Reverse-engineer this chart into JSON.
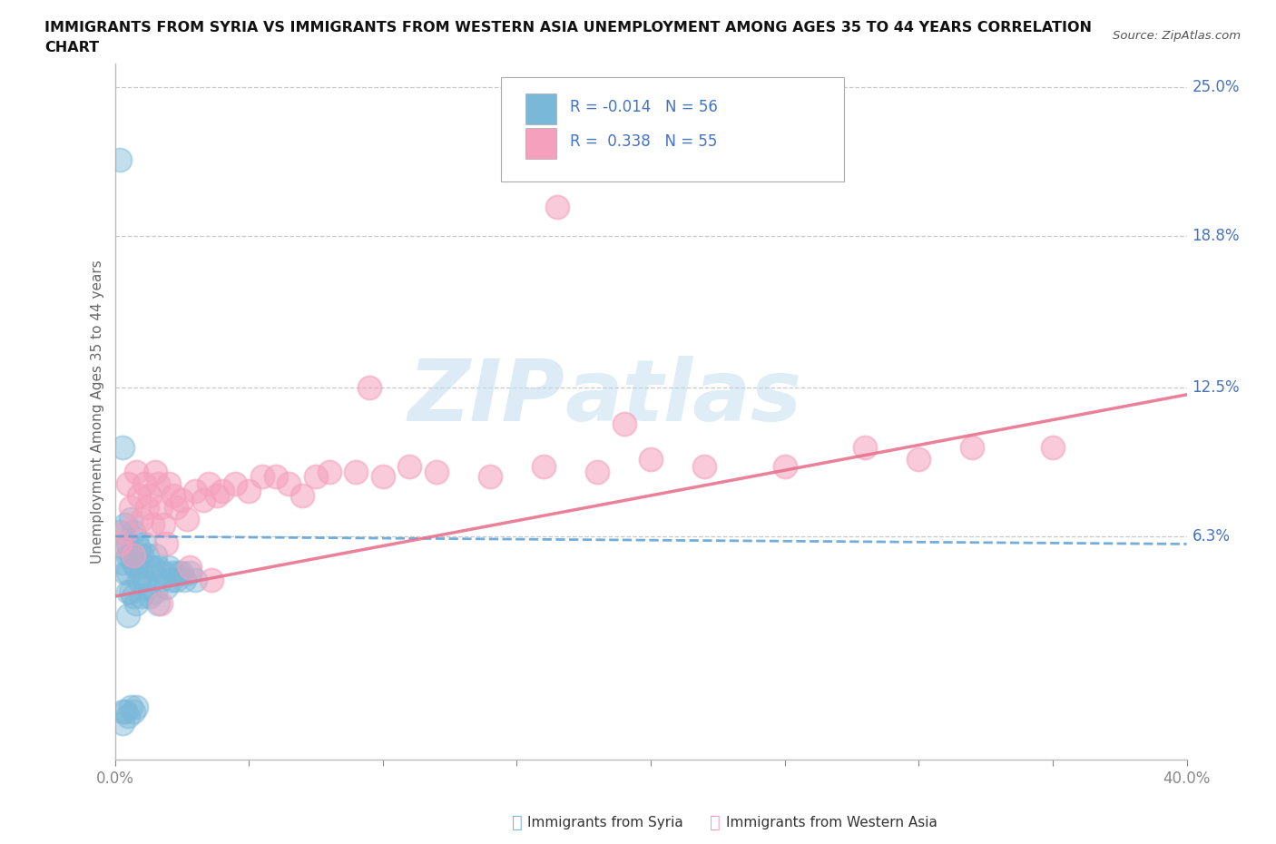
{
  "title_line1": "IMMIGRANTS FROM SYRIA VS IMMIGRANTS FROM WESTERN ASIA UNEMPLOYMENT AMONG AGES 35 TO 44 YEARS CORRELATION",
  "title_line2": "CHART",
  "source": "Source: ZipAtlas.com",
  "ylabel": "Unemployment Among Ages 35 to 44 years",
  "xlim": [
    0.0,
    0.4
  ],
  "ylim": [
    -0.03,
    0.26
  ],
  "ytick_positions": [
    0.063,
    0.125,
    0.188,
    0.25
  ],
  "ytick_labels": [
    "6.3%",
    "12.5%",
    "18.8%",
    "25.0%"
  ],
  "syria_color": "#7ab8d9",
  "western_color": "#f5a0bc",
  "syria_line_color": "#5b9fd4",
  "western_line_color": "#e8728f",
  "legend_R_syria": "-0.014",
  "legend_N_syria": "56",
  "legend_R_western": "0.338",
  "legend_N_western": "55",
  "legend_label_syria": "Immigrants from Syria",
  "legend_label_western": "Immigrants from Western Asia",
  "syria_x": [
    0.002,
    0.002,
    0.003,
    0.003,
    0.004,
    0.004,
    0.004,
    0.005,
    0.005,
    0.005,
    0.005,
    0.005,
    0.006,
    0.006,
    0.006,
    0.007,
    0.007,
    0.007,
    0.008,
    0.008,
    0.008,
    0.009,
    0.009,
    0.01,
    0.01,
    0.01,
    0.011,
    0.011,
    0.012,
    0.012,
    0.013,
    0.013,
    0.014,
    0.015,
    0.015,
    0.016,
    0.016,
    0.017,
    0.018,
    0.019,
    0.02,
    0.021,
    0.022,
    0.023,
    0.024,
    0.025,
    0.026,
    0.028,
    0.03,
    0.003,
    0.003,
    0.004,
    0.005,
    0.006,
    0.007,
    0.008
  ],
  "syria_y": [
    0.22,
    0.065,
    0.1,
    0.052,
    0.068,
    0.058,
    0.048,
    0.06,
    0.055,
    0.048,
    0.04,
    0.03,
    0.07,
    0.055,
    0.04,
    0.065,
    0.052,
    0.038,
    0.062,
    0.05,
    0.035,
    0.058,
    0.045,
    0.055,
    0.048,
    0.038,
    0.06,
    0.045,
    0.055,
    0.042,
    0.05,
    0.038,
    0.05,
    0.055,
    0.04,
    0.05,
    0.035,
    0.045,
    0.048,
    0.042,
    0.05,
    0.045,
    0.048,
    0.045,
    0.048,
    0.048,
    0.045,
    0.048,
    0.045,
    -0.01,
    -0.015,
    -0.01,
    -0.012,
    -0.008,
    -0.01,
    -0.008
  ],
  "western_x": [
    0.002,
    0.004,
    0.005,
    0.006,
    0.007,
    0.008,
    0.009,
    0.01,
    0.011,
    0.012,
    0.013,
    0.014,
    0.015,
    0.016,
    0.017,
    0.018,
    0.019,
    0.02,
    0.022,
    0.023,
    0.025,
    0.027,
    0.03,
    0.033,
    0.035,
    0.038,
    0.04,
    0.045,
    0.05,
    0.055,
    0.06,
    0.065,
    0.07,
    0.075,
    0.08,
    0.09,
    0.1,
    0.11,
    0.12,
    0.14,
    0.16,
    0.18,
    0.2,
    0.22,
    0.25,
    0.28,
    0.3,
    0.32,
    0.35,
    0.165,
    0.095,
    0.036,
    0.017,
    0.028,
    0.19
  ],
  "western_y": [
    0.06,
    0.065,
    0.085,
    0.075,
    0.055,
    0.09,
    0.08,
    0.07,
    0.085,
    0.075,
    0.08,
    0.068,
    0.09,
    0.085,
    0.075,
    0.068,
    0.06,
    0.085,
    0.08,
    0.075,
    0.078,
    0.07,
    0.082,
    0.078,
    0.085,
    0.08,
    0.082,
    0.085,
    0.082,
    0.088,
    0.088,
    0.085,
    0.08,
    0.088,
    0.09,
    0.09,
    0.088,
    0.092,
    0.09,
    0.088,
    0.092,
    0.09,
    0.095,
    0.092,
    0.092,
    0.1,
    0.095,
    0.1,
    0.1,
    0.2,
    0.125,
    0.045,
    0.035,
    0.05,
    0.11
  ],
  "watermark_zip": "ZIP",
  "watermark_atlas": "atlas",
  "background_color": "#ffffff",
  "grid_color": "#c8c8c8"
}
